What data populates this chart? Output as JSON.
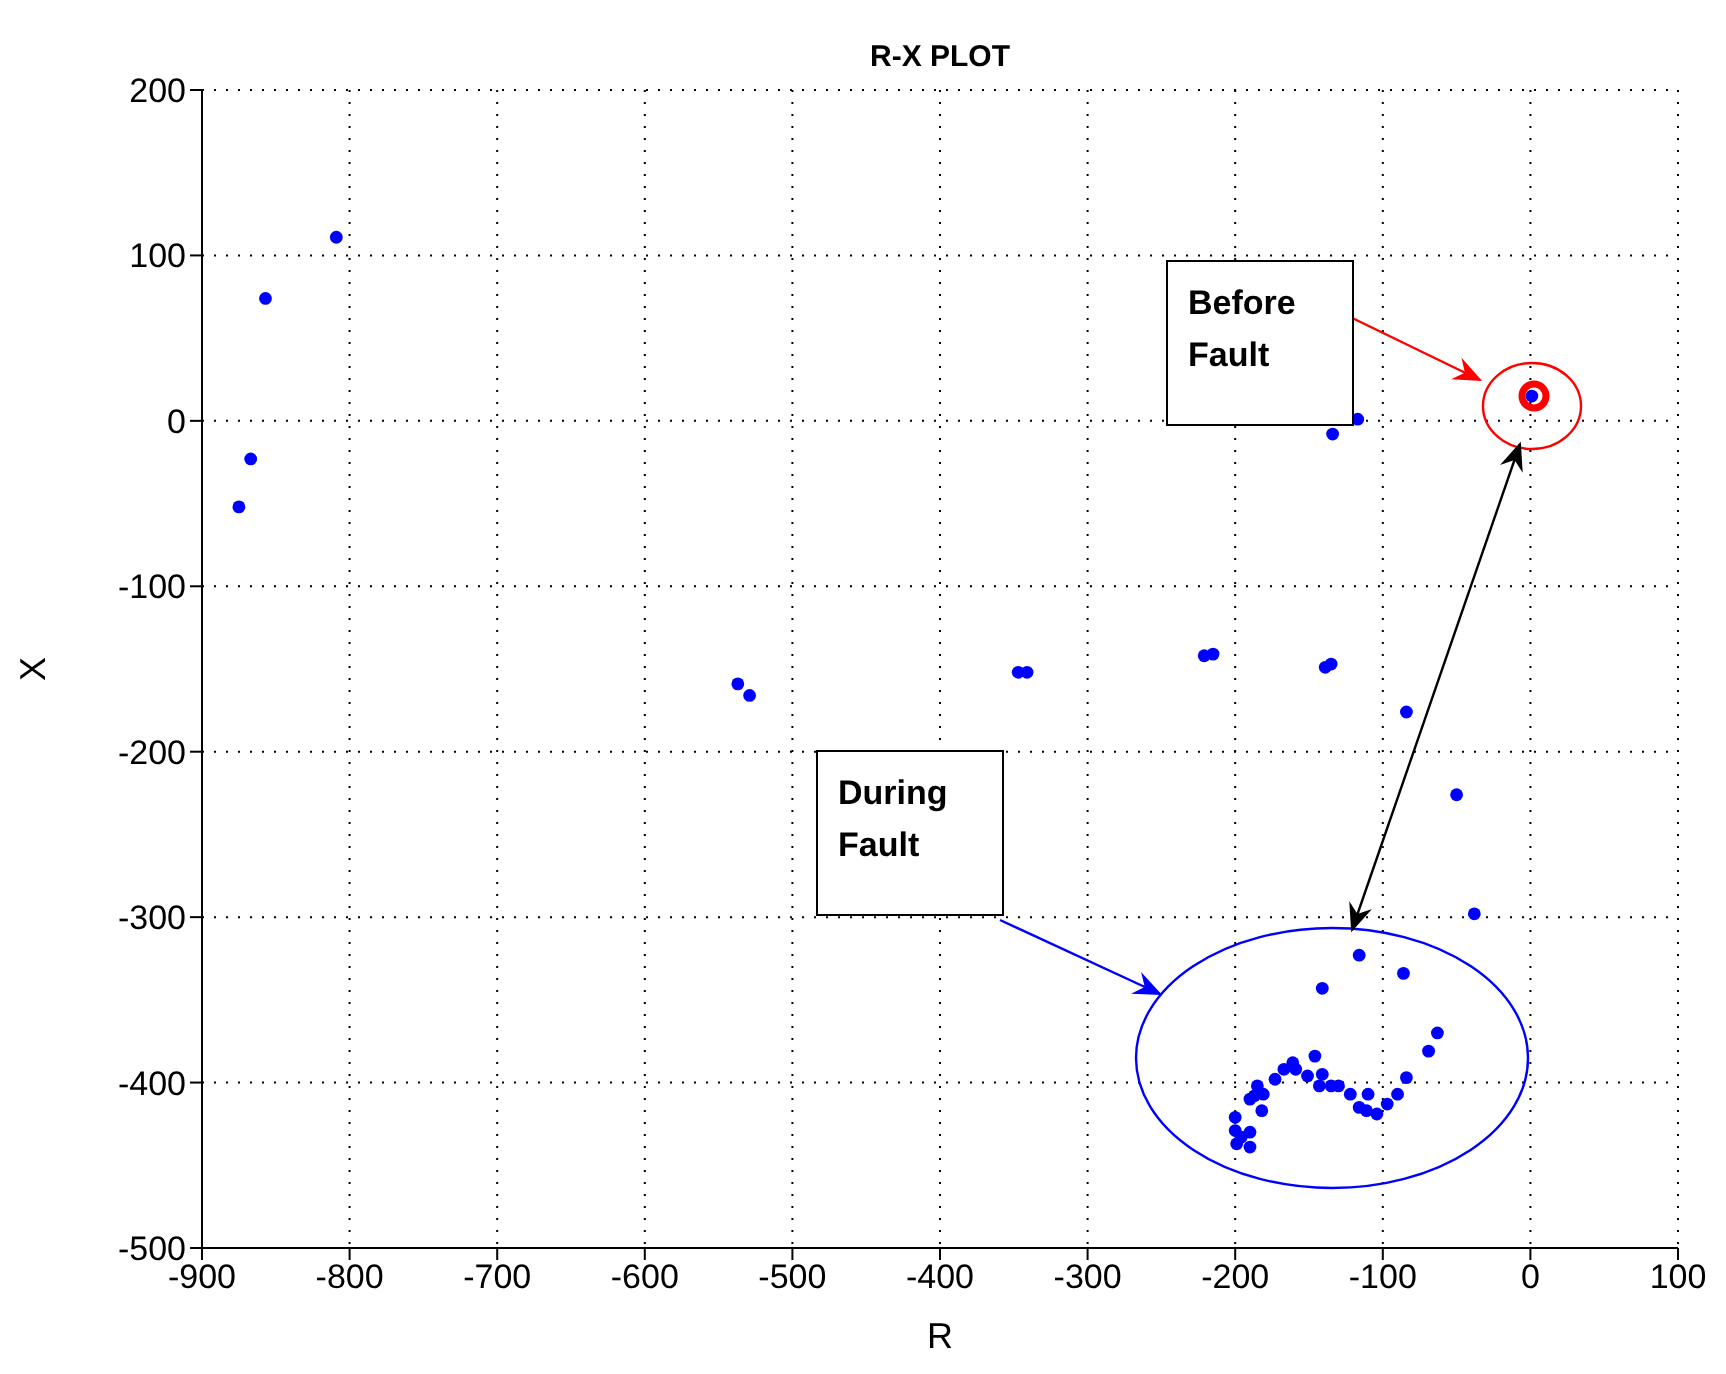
{
  "chart_data": {
    "type": "scatter",
    "title": "R-X PLOT",
    "xlabel": "R",
    "ylabel": "X",
    "xlim": [
      -900,
      100
    ],
    "xticks": [
      -900,
      -800,
      -700,
      -600,
      -500,
      -400,
      -300,
      -200,
      -100,
      0,
      100
    ],
    "ylim": [
      -500,
      200
    ],
    "yticks": [
      -500,
      -400,
      -300,
      -200,
      -100,
      0,
      100,
      200
    ],
    "grid": true,
    "marker": "circle",
    "legend": false,
    "annotations": [
      "Before Fault",
      "During Fault"
    ],
    "series": [
      {
        "color": "#0000ff",
        "x": [
          -809,
          -857,
          -867,
          -875,
          -537,
          -529,
          -347,
          -341,
          -221,
          -215,
          -139,
          -135,
          -134,
          -117,
          1,
          -84,
          -50,
          -38,
          -116,
          -86,
          -141,
          -63,
          -69,
          -84,
          -90,
          -97,
          -104,
          -111,
          -116,
          -110,
          -122,
          -130,
          -135,
          -143,
          -141,
          -146,
          -151,
          -159,
          -161,
          -167,
          -173,
          -181,
          -185,
          -187,
          -190,
          -182,
          -200,
          -200,
          -196,
          -190,
          -199,
          -190
        ],
        "values": [
          111,
          74,
          -23,
          -52,
          -159,
          -166,
          -152,
          -152,
          -142,
          -141,
          -149,
          -147,
          -8,
          1,
          15,
          -176,
          -226,
          -298,
          -323,
          -334,
          -343,
          -370,
          -381,
          -397,
          -407,
          -413,
          -419,
          -417,
          -415,
          -407,
          -407,
          -402,
          -402,
          -402,
          -395,
          -384,
          -396,
          -392,
          -388,
          -392,
          -398,
          -407,
          -402,
          -408,
          -410,
          -417,
          -421,
          -429,
          -433,
          -439,
          -437,
          -430
        ]
      }
    ]
  }
}
